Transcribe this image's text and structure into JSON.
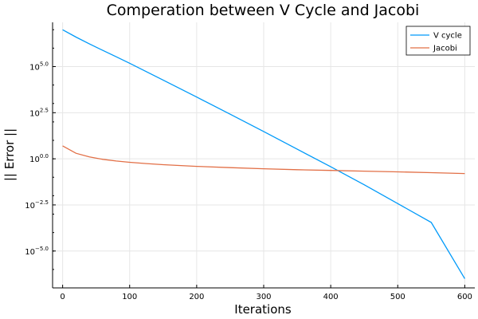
{
  "chart_data": {
    "type": "line",
    "title": "Comperation between V Cycle and Jacobi",
    "xlabel": "Iterations",
    "ylabel": "|| Error ||",
    "xlim": [
      -15,
      615
    ],
    "ylim_log10": [
      -7.0,
      7.4
    ],
    "yscale": "log10",
    "x_ticks": [
      0,
      100,
      200,
      300,
      400,
      500,
      600
    ],
    "y_ticks": [
      {
        "base": "10",
        "exp": "−5.0",
        "value": -5.0
      },
      {
        "base": "10",
        "exp": "−2.5",
        "value": -2.5
      },
      {
        "base": "10",
        "exp": "0.0",
        "value": 0.0
      },
      {
        "base": "10",
        "exp": "2.5",
        "value": 2.5
      },
      {
        "base": "10",
        "exp": "5.0",
        "value": 5.0
      }
    ],
    "grid": true,
    "legend_position": "top-right",
    "series": [
      {
        "name": "V cycle",
        "color": "#009af9",
        "x": [
          0,
          20,
          40,
          60,
          80,
          100,
          150,
          200,
          250,
          300,
          350,
          400,
          450,
          500,
          550,
          600
        ],
        "y_log10": [
          7.0,
          6.6,
          6.23,
          5.88,
          5.53,
          5.18,
          4.27,
          3.35,
          2.42,
          1.48,
          0.52,
          -0.43,
          -1.41,
          -2.43,
          -3.45,
          -6.5
        ]
      },
      {
        "name": "Jacobi",
        "color": "#e26f46",
        "x": [
          0,
          20,
          40,
          60,
          80,
          100,
          125,
          150,
          200,
          250,
          300,
          350,
          400,
          450,
          500,
          550,
          600
        ],
        "y_log10": [
          0.7,
          0.3,
          0.1,
          -0.03,
          -0.12,
          -0.19,
          -0.26,
          -0.32,
          -0.41,
          -0.48,
          -0.54,
          -0.59,
          -0.63,
          -0.67,
          -0.71,
          -0.75,
          -0.8
        ]
      }
    ]
  }
}
